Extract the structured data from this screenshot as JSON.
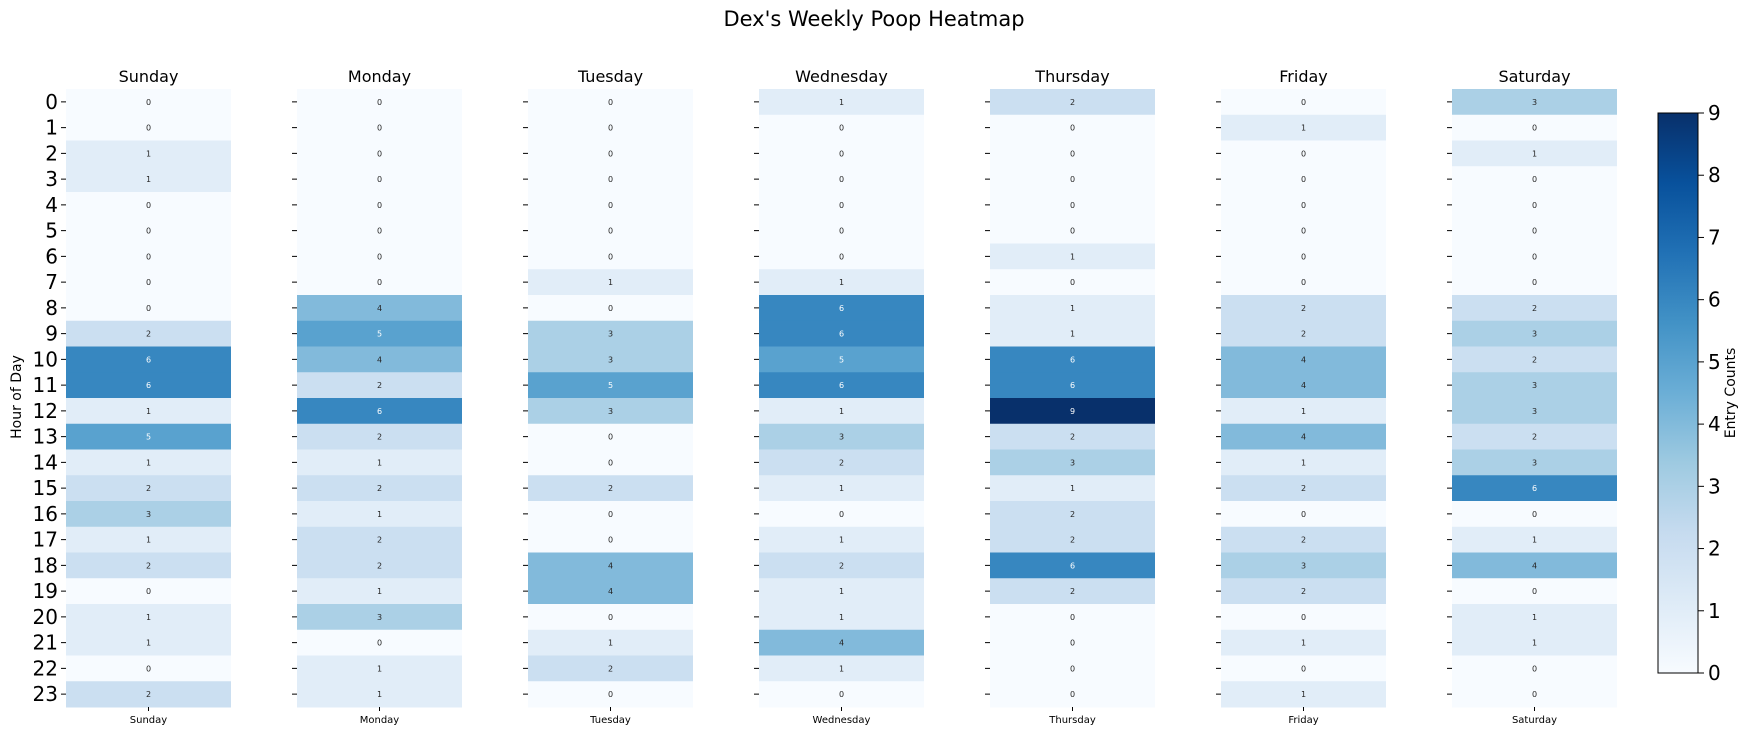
{
  "chart_data": {
    "type": "heatmap",
    "title": "Dex's Weekly Poop Heatmap",
    "ylabel": "Hour of Day",
    "colorbar_label": "Entry Counts",
    "colorbar_ticks": [
      0,
      1,
      2,
      3,
      4,
      5,
      6,
      7,
      8,
      9
    ],
    "vmin": 0,
    "vmax": 9,
    "colormap": "Blues",
    "colormap_stops": [
      "#f7fbff",
      "#deebf7",
      "#c6dbef",
      "#9ecae1",
      "#6baed6",
      "#4292c6",
      "#2171b5",
      "#08519c",
      "#08306b"
    ],
    "hours": [
      0,
      1,
      2,
      3,
      4,
      5,
      6,
      7,
      8,
      9,
      10,
      11,
      12,
      13,
      14,
      15,
      16,
      17,
      18,
      19,
      20,
      21,
      22,
      23
    ],
    "days": [
      {
        "name": "Sunday",
        "values": [
          0,
          0,
          1,
          1,
          0,
          0,
          0,
          0,
          0,
          2,
          6,
          6,
          1,
          5,
          1,
          2,
          3,
          1,
          2,
          0,
          1,
          1,
          0,
          2
        ]
      },
      {
        "name": "Monday",
        "values": [
          0,
          0,
          0,
          0,
          0,
          0,
          0,
          0,
          4,
          5,
          4,
          2,
          6,
          2,
          1,
          2,
          1,
          2,
          2,
          1,
          3,
          0,
          1,
          1
        ]
      },
      {
        "name": "Tuesday",
        "values": [
          0,
          0,
          0,
          0,
          0,
          0,
          0,
          1,
          0,
          3,
          3,
          5,
          3,
          0,
          0,
          2,
          0,
          0,
          4,
          4,
          0,
          1,
          2,
          0
        ]
      },
      {
        "name": "Wednesday",
        "values": [
          1,
          0,
          0,
          0,
          0,
          0,
          0,
          1,
          6,
          6,
          5,
          6,
          1,
          3,
          2,
          1,
          0,
          1,
          2,
          1,
          1,
          4,
          1,
          0
        ]
      },
      {
        "name": "Thursday",
        "values": [
          2,
          0,
          0,
          0,
          0,
          0,
          1,
          0,
          1,
          1,
          6,
          6,
          9,
          2,
          3,
          1,
          2,
          2,
          6,
          2,
          0,
          0,
          0,
          0
        ]
      },
      {
        "name": "Friday",
        "values": [
          0,
          1,
          0,
          0,
          0,
          0,
          0,
          0,
          2,
          2,
          4,
          4,
          1,
          4,
          1,
          2,
          0,
          2,
          3,
          2,
          0,
          1,
          0,
          1
        ]
      },
      {
        "name": "Saturday",
        "values": [
          3,
          0,
          1,
          0,
          0,
          0,
          0,
          0,
          2,
          3,
          2,
          3,
          3,
          2,
          3,
          6,
          0,
          1,
          4,
          0,
          1,
          1,
          0,
          0
        ]
      }
    ]
  }
}
